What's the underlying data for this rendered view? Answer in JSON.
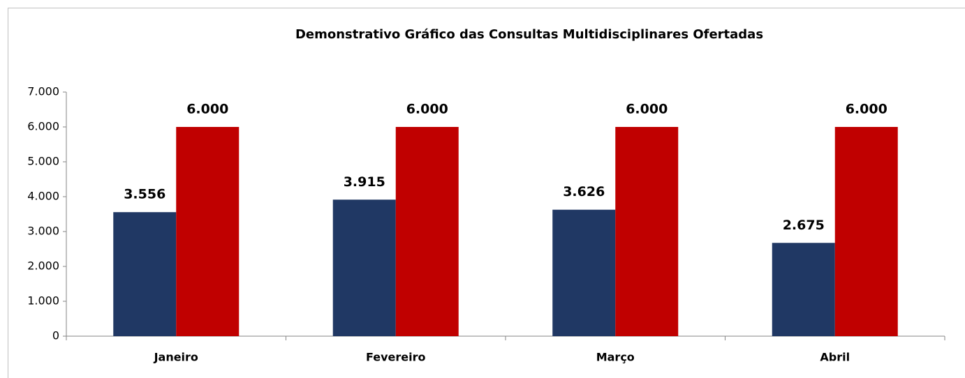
{
  "chart_data": {
    "type": "bar",
    "title": "Demonstrativo Gráfico das Consultas Multidisciplinares Ofertadas",
    "categories": [
      "Janeiro",
      "Fevereiro",
      "Março",
      "Abril"
    ],
    "series": [
      {
        "color": "#203864",
        "values": [
          3556,
          3915,
          3626,
          2675
        ],
        "value_labels": [
          "3.556",
          "3.915",
          "3.626",
          "2.675"
        ]
      },
      {
        "color": "#c00000",
        "values": [
          6000,
          6000,
          6000,
          6000
        ],
        "value_labels": [
          "6.000",
          "6.000",
          "6.000",
          "6.000"
        ]
      }
    ],
    "ylim": [
      0,
      7000
    ],
    "yticks": [
      0,
      {
        "value": 1000,
        "label": "1.000"
      },
      {
        "value": 2000,
        "label": "2.000"
      },
      {
        "value": 3000,
        "label": "3.000"
      },
      {
        "value": 4000,
        "label": "4.000"
      },
      {
        "value": 5000,
        "label": "5.000"
      },
      {
        "value": 6000,
        "label": "6.000"
      },
      {
        "value": 7000,
        "label": "7.000"
      }
    ],
    "grid": false
  }
}
